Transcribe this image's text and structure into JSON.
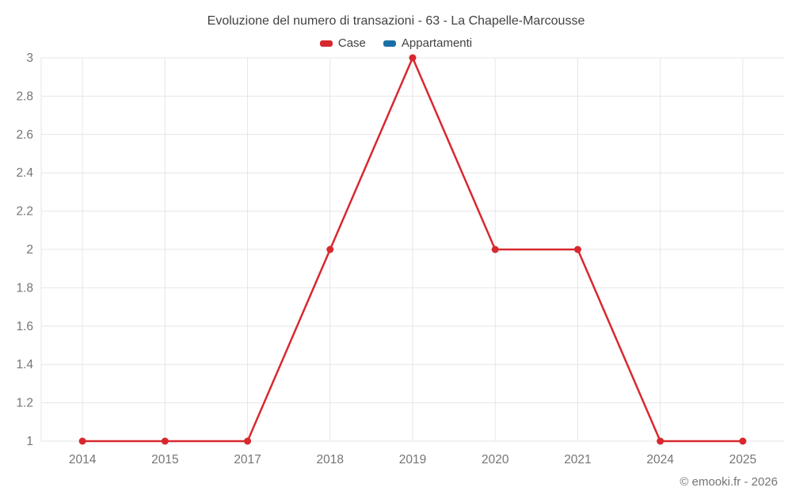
{
  "title": "Evoluzione del numero di transazioni - 63 - La Chapelle-Marcousse",
  "footer": "© emooki.fr - 2026",
  "colors": {
    "case_red": "#d8282e",
    "appartamenti_blue": "#1a6fa8",
    "grid": "#e6e6e6",
    "axis_text": "#757575",
    "title_text": "#424242"
  },
  "legend": {
    "items": [
      {
        "label": "Case",
        "color": "#d8282e"
      },
      {
        "label": "Appartamenti",
        "color": "#1a6fa8"
      }
    ]
  },
  "chart_data": {
    "type": "line",
    "title": "Evoluzione del numero di transazioni - 63 - La Chapelle-Marcousse",
    "categories": [
      "2014",
      "2015",
      "2017",
      "2018",
      "2019",
      "2020",
      "2021",
      "2024",
      "2025"
    ],
    "series": [
      {
        "name": "Case",
        "color": "#d8282e",
        "values": [
          1,
          1,
          1,
          2,
          3,
          2,
          2,
          1,
          1
        ]
      },
      {
        "name": "Appartamenti",
        "color": "#1a6fa8",
        "values": []
      }
    ],
    "xlabel": "",
    "ylabel": "",
    "ylim": [
      1,
      3
    ],
    "yticks": [
      1,
      1.2,
      1.4,
      1.6,
      1.8,
      2,
      2.2,
      2.4,
      2.6,
      2.8,
      3
    ],
    "ytick_labels": [
      "1",
      "1.2",
      "1.4",
      "1.6",
      "1.8",
      "2",
      "2.2",
      "2.4",
      "2.6",
      "2.8",
      "3"
    ],
    "grid": true,
    "legend_position": "top"
  }
}
